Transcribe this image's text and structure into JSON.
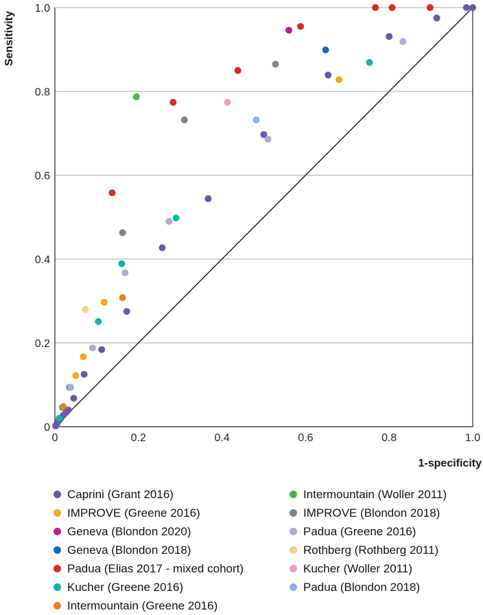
{
  "chart_data": {
    "type": "scatter",
    "xlabel": "1-specificity",
    "ylabel": "Sensitivity",
    "xlim": [
      0,
      1
    ],
    "ylim": [
      0,
      1
    ],
    "xticks": [
      "0",
      "0.2",
      "0.4",
      "0.6",
      "0.8",
      "1.0"
    ],
    "yticks": [
      "0",
      "0.2",
      "0.4",
      "0.6",
      "0.8",
      "1.0"
    ],
    "grid": "horizontal",
    "reference_line": [
      [
        0,
        0
      ],
      [
        1,
        1
      ]
    ],
    "legend_position": "bottom",
    "series": [
      {
        "name": "Caprini (Grant 2016)",
        "color": "#6a57a5",
        "points": [
          [
            0.002,
            0.002
          ],
          [
            0.005,
            0.008
          ],
          [
            0.009,
            0.014
          ],
          [
            0.014,
            0.02
          ],
          [
            0.02,
            0.027
          ],
          [
            0.027,
            0.034
          ],
          [
            0.032,
            0.04
          ],
          [
            0.045,
            0.068
          ],
          [
            0.07,
            0.125
          ],
          [
            0.112,
            0.184
          ],
          [
            0.172,
            0.275
          ],
          [
            0.257,
            0.427
          ],
          [
            0.367,
            0.544
          ],
          [
            0.5,
            0.697
          ],
          [
            0.654,
            0.839
          ],
          [
            0.8,
            0.931
          ],
          [
            0.914,
            0.975
          ],
          [
            0.985,
            1.0
          ],
          [
            1.0,
            1.0
          ]
        ]
      },
      {
        "name": "IMPROVE (Greene 2016)",
        "color": "#f2ab1e",
        "points": [
          [
            0.05,
            0.122
          ],
          [
            0.068,
            0.167
          ],
          [
            0.118,
            0.297
          ],
          [
            0.68,
            0.828
          ]
        ]
      },
      {
        "name": "Geneva (Blondon 2020)",
        "color": "#c21b8c",
        "points": [
          [
            0.56,
            0.946
          ]
        ]
      },
      {
        "name": "Geneva (Blondon 2018)",
        "color": "#1c68b2",
        "points": [
          [
            0.648,
            0.899
          ]
        ]
      },
      {
        "name": "Padua (Elias 2017 - mixed cohort)",
        "color": "#e02628",
        "points": [
          [
            0.137,
            0.558
          ],
          [
            0.283,
            0.774
          ],
          [
            0.438,
            0.85
          ],
          [
            0.588,
            0.955
          ],
          [
            0.767,
            1.0
          ],
          [
            0.807,
            1.0
          ],
          [
            0.898,
            1.0
          ]
        ]
      },
      {
        "name": "Kucher (Greene 2016)",
        "color": "#17b1aa",
        "points": [
          [
            0.01,
            0.02
          ],
          [
            0.018,
            0.046
          ],
          [
            0.035,
            0.094
          ],
          [
            0.104,
            0.251
          ],
          [
            0.16,
            0.389
          ],
          [
            0.29,
            0.498
          ],
          [
            0.753,
            0.869
          ]
        ]
      },
      {
        "name": "Intermountain (Greene 2016)",
        "color": "#ef7c24",
        "points": [
          [
            0.02,
            0.048
          ],
          [
            0.162,
            0.308
          ]
        ]
      },
      {
        "name": "Intermountain (Woller 2011)",
        "color": "#4bb749",
        "points": [
          [
            0.195,
            0.787
          ]
        ]
      },
      {
        "name": "IMPROVE (Blondon 2018)",
        "color": "#7b868c",
        "points": [
          [
            0.162,
            0.463
          ],
          [
            0.31,
            0.732
          ],
          [
            0.528,
            0.865
          ]
        ]
      },
      {
        "name": "Padua (Greene 2016)",
        "color": "#b3a7d5",
        "points": [
          [
            0.038,
            0.094
          ],
          [
            0.09,
            0.188
          ],
          [
            0.168,
            0.367
          ],
          [
            0.273,
            0.49
          ],
          [
            0.51,
            0.686
          ],
          [
            0.833,
            0.919
          ]
        ]
      },
      {
        "name": "Rothberg (Rothberg 2011)",
        "color": "#f8cc8a",
        "points": [
          [
            0.073,
            0.28
          ]
        ]
      },
      {
        "name": "Kucher (Woller 2011)",
        "color": "#f09ac8",
        "points": [
          [
            0.413,
            0.774
          ]
        ]
      },
      {
        "name": "Padua (Blondon 2018)",
        "color": "#91b1e2",
        "points": [
          [
            0.482,
            0.732
          ]
        ]
      }
    ]
  },
  "legend_left": [
    "Caprini (Grant 2016)",
    "IMPROVE (Greene 2016)",
    "Geneva (Blondon 2020)",
    "Geneva (Blondon 2018)",
    "Padua (Elias 2017 - mixed cohort)",
    "Kucher (Greene 2016)",
    "Intermountain (Greene 2016)"
  ],
  "legend_right": [
    "Intermountain (Woller 2011)",
    "IMPROVE (Blondon 2018)",
    "Padua (Greene 2016)",
    "Rothberg (Rothberg 2011)",
    "Kucher (Woller 2011)",
    "Padua (Blondon 2018)"
  ]
}
